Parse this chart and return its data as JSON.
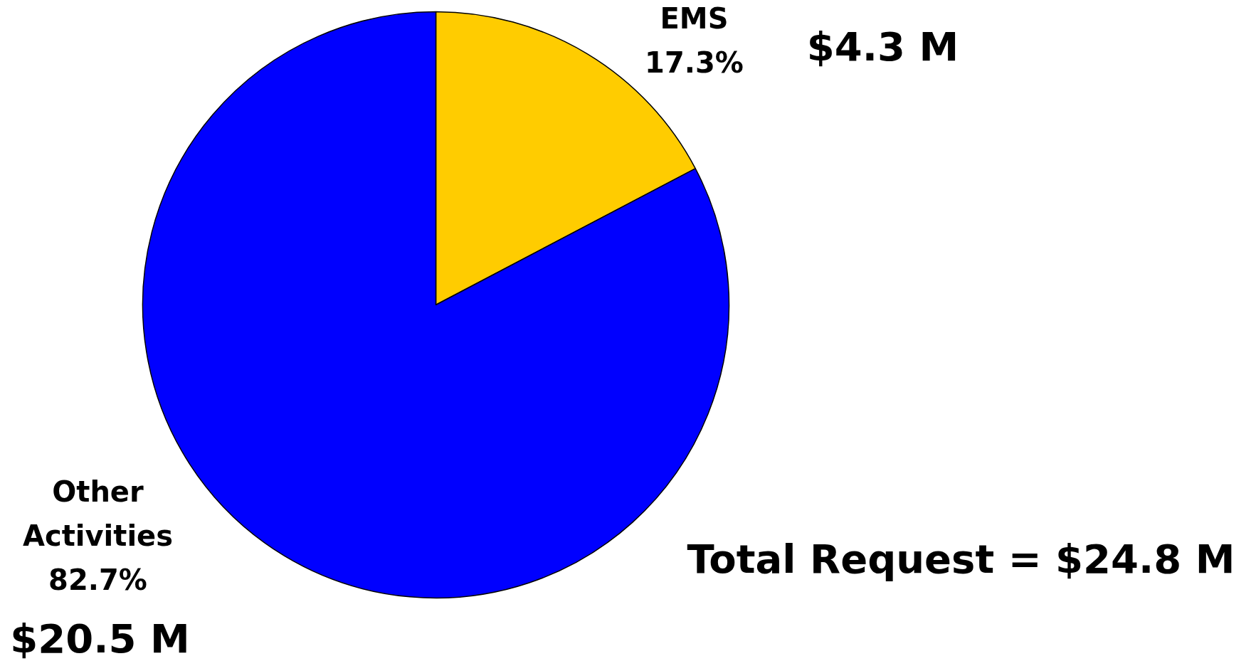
{
  "chart_data": {
    "type": "pie",
    "categories": [
      "EMS",
      "Other Activities"
    ],
    "values": [
      17.3,
      82.7
    ],
    "value_labels": [
      "17.3%",
      "82.7%"
    ],
    "colors": [
      "#ffcc00",
      "#0000ff"
    ],
    "annotations": [
      "$4.3 M",
      "$20.5 M",
      "Total Request = $24.8 M"
    ]
  }
}
